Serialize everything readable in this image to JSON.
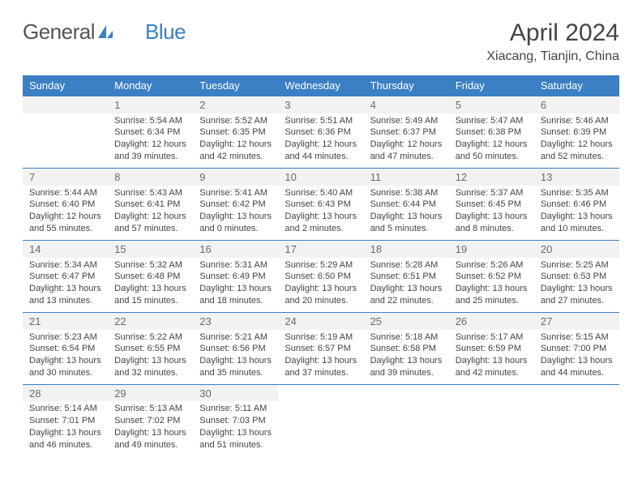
{
  "brand": {
    "part1": "General",
    "part2": "Blue"
  },
  "title": "April 2024",
  "location": "Xiacang, Tianjin, China",
  "colors": {
    "header_bg": "#3b7fc4",
    "header_fg": "#ffffff",
    "daynum_bg": "#f2f2f2",
    "text": "#444444"
  },
  "layout": {
    "weeks": 5,
    "first_weekday_offset": 1,
    "days_in_month": 30
  },
  "weekdays": [
    "Sunday",
    "Monday",
    "Tuesday",
    "Wednesday",
    "Thursday",
    "Friday",
    "Saturday"
  ],
  "days": [
    {
      "n": 1,
      "sunrise": "5:54 AM",
      "sunset": "6:34 PM",
      "daylight": "12 hours and 39 minutes."
    },
    {
      "n": 2,
      "sunrise": "5:52 AM",
      "sunset": "6:35 PM",
      "daylight": "12 hours and 42 minutes."
    },
    {
      "n": 3,
      "sunrise": "5:51 AM",
      "sunset": "6:36 PM",
      "daylight": "12 hours and 44 minutes."
    },
    {
      "n": 4,
      "sunrise": "5:49 AM",
      "sunset": "6:37 PM",
      "daylight": "12 hours and 47 minutes."
    },
    {
      "n": 5,
      "sunrise": "5:47 AM",
      "sunset": "6:38 PM",
      "daylight": "12 hours and 50 minutes."
    },
    {
      "n": 6,
      "sunrise": "5:46 AM",
      "sunset": "6:39 PM",
      "daylight": "12 hours and 52 minutes."
    },
    {
      "n": 7,
      "sunrise": "5:44 AM",
      "sunset": "6:40 PM",
      "daylight": "12 hours and 55 minutes."
    },
    {
      "n": 8,
      "sunrise": "5:43 AM",
      "sunset": "6:41 PM",
      "daylight": "12 hours and 57 minutes."
    },
    {
      "n": 9,
      "sunrise": "5:41 AM",
      "sunset": "6:42 PM",
      "daylight": "13 hours and 0 minutes."
    },
    {
      "n": 10,
      "sunrise": "5:40 AM",
      "sunset": "6:43 PM",
      "daylight": "13 hours and 2 minutes."
    },
    {
      "n": 11,
      "sunrise": "5:38 AM",
      "sunset": "6:44 PM",
      "daylight": "13 hours and 5 minutes."
    },
    {
      "n": 12,
      "sunrise": "5:37 AM",
      "sunset": "6:45 PM",
      "daylight": "13 hours and 8 minutes."
    },
    {
      "n": 13,
      "sunrise": "5:35 AM",
      "sunset": "6:46 PM",
      "daylight": "13 hours and 10 minutes."
    },
    {
      "n": 14,
      "sunrise": "5:34 AM",
      "sunset": "6:47 PM",
      "daylight": "13 hours and 13 minutes."
    },
    {
      "n": 15,
      "sunrise": "5:32 AM",
      "sunset": "6:48 PM",
      "daylight": "13 hours and 15 minutes."
    },
    {
      "n": 16,
      "sunrise": "5:31 AM",
      "sunset": "6:49 PM",
      "daylight": "13 hours and 18 minutes."
    },
    {
      "n": 17,
      "sunrise": "5:29 AM",
      "sunset": "6:50 PM",
      "daylight": "13 hours and 20 minutes."
    },
    {
      "n": 18,
      "sunrise": "5:28 AM",
      "sunset": "6:51 PM",
      "daylight": "13 hours and 22 minutes."
    },
    {
      "n": 19,
      "sunrise": "5:26 AM",
      "sunset": "6:52 PM",
      "daylight": "13 hours and 25 minutes."
    },
    {
      "n": 20,
      "sunrise": "5:25 AM",
      "sunset": "6:53 PM",
      "daylight": "13 hours and 27 minutes."
    },
    {
      "n": 21,
      "sunrise": "5:23 AM",
      "sunset": "6:54 PM",
      "daylight": "13 hours and 30 minutes."
    },
    {
      "n": 22,
      "sunrise": "5:22 AM",
      "sunset": "6:55 PM",
      "daylight": "13 hours and 32 minutes."
    },
    {
      "n": 23,
      "sunrise": "5:21 AM",
      "sunset": "6:56 PM",
      "daylight": "13 hours and 35 minutes."
    },
    {
      "n": 24,
      "sunrise": "5:19 AM",
      "sunset": "6:57 PM",
      "daylight": "13 hours and 37 minutes."
    },
    {
      "n": 25,
      "sunrise": "5:18 AM",
      "sunset": "6:58 PM",
      "daylight": "13 hours and 39 minutes."
    },
    {
      "n": 26,
      "sunrise": "5:17 AM",
      "sunset": "6:59 PM",
      "daylight": "13 hours and 42 minutes."
    },
    {
      "n": 27,
      "sunrise": "5:15 AM",
      "sunset": "7:00 PM",
      "daylight": "13 hours and 44 minutes."
    },
    {
      "n": 28,
      "sunrise": "5:14 AM",
      "sunset": "7:01 PM",
      "daylight": "13 hours and 46 minutes."
    },
    {
      "n": 29,
      "sunrise": "5:13 AM",
      "sunset": "7:02 PM",
      "daylight": "13 hours and 49 minutes."
    },
    {
      "n": 30,
      "sunrise": "5:11 AM",
      "sunset": "7:03 PM",
      "daylight": "13 hours and 51 minutes."
    }
  ],
  "labels": {
    "sunrise_prefix": "Sunrise: ",
    "sunset_prefix": "Sunset: ",
    "daylight_prefix": "Daylight: "
  }
}
